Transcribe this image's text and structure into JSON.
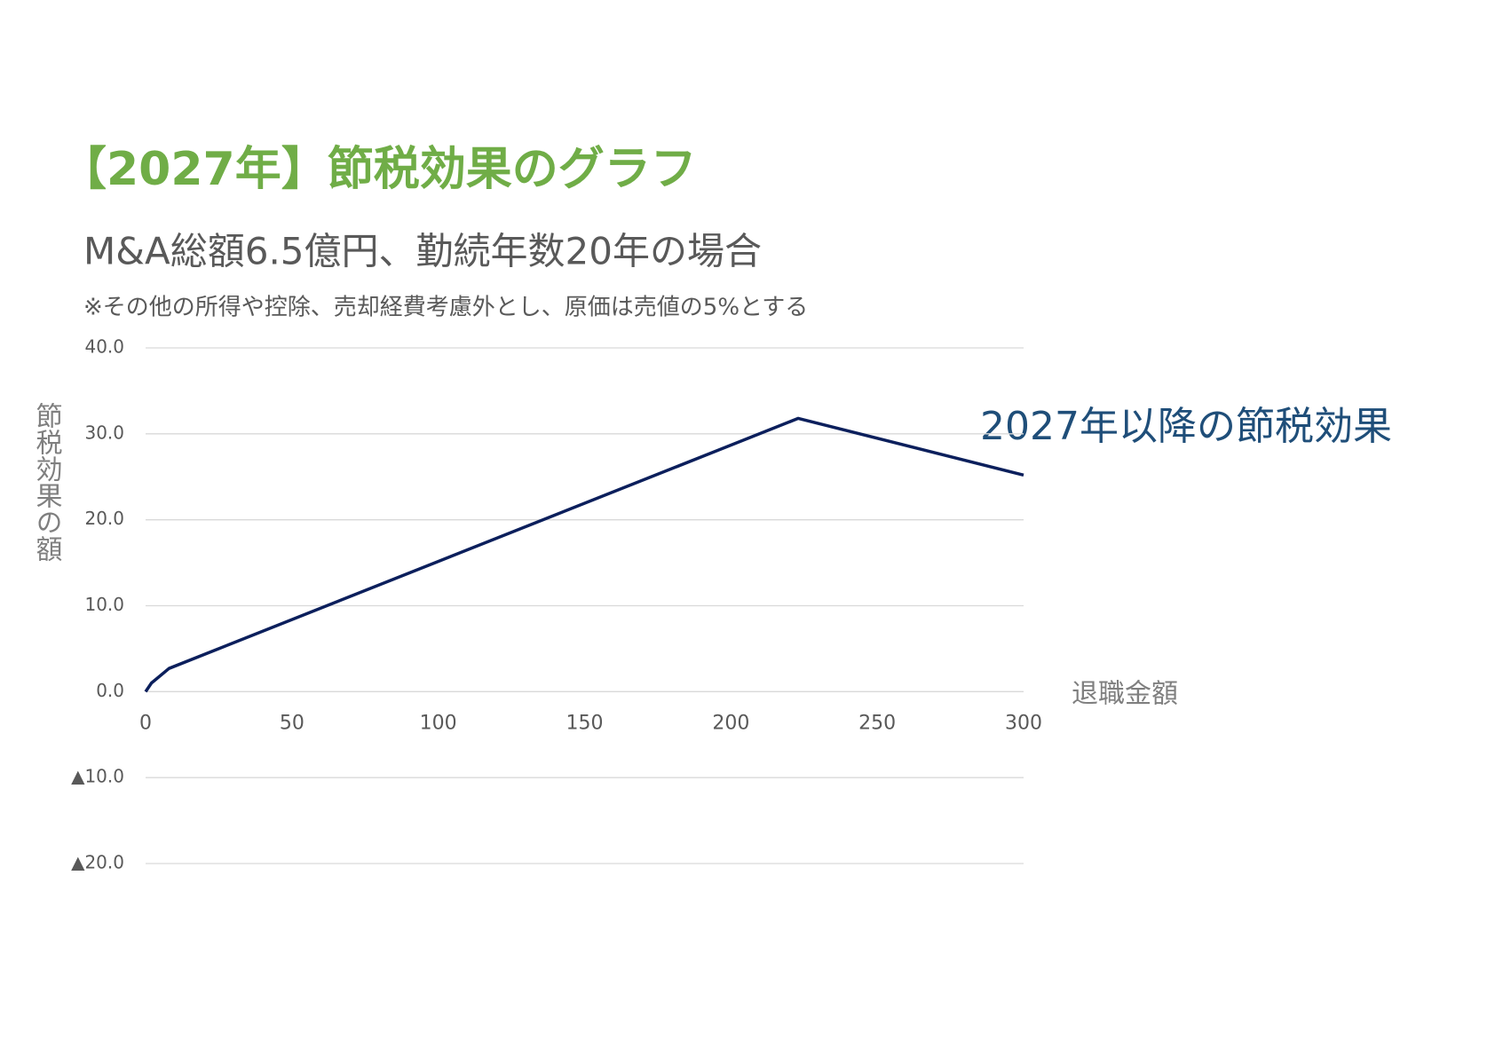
{
  "chart_data": {
    "type": "line",
    "title": "【2027年】節税効果のグラフ",
    "subtitle": "M&A総額6.5億円、勤続年数20年の場合",
    "note": "※その他の所得や控除、売却経費考慮外とし、原価は売値の5%とする",
    "y_label": "節税効果の額",
    "x_label": "退職金額",
    "x": [
      0,
      2,
      8,
      223,
      300
    ],
    "series": [
      {
        "name": "2027年以降の節税効果",
        "color": "#0b1f5c",
        "values": [
          0,
          1,
          2.7,
          31.8,
          25.2
        ]
      }
    ],
    "xlim": [
      0,
      300
    ],
    "xticks": [
      0,
      50,
      100,
      150,
      200,
      250,
      300
    ],
    "ylim": [
      -20,
      40
    ],
    "yticks": [
      {
        "value": -20,
        "label": "▲20.0"
      },
      {
        "value": -10,
        "label": "▲10.0"
      },
      {
        "value": 0,
        "label": "0.0"
      },
      {
        "value": 10,
        "label": "10.0"
      },
      {
        "value": 20,
        "label": "20.0"
      },
      {
        "value": 30,
        "label": "30.0"
      },
      {
        "value": 40,
        "label": "40.0"
      }
    ],
    "grid": true
  }
}
